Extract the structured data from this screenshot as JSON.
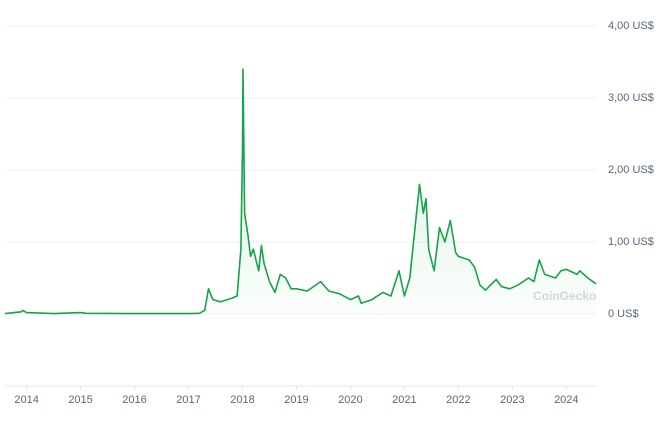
{
  "chart_data": {
    "type": "line",
    "watermark": "CoinGecko",
    "series": [
      {
        "color": "#16a34a",
        "x": [
          2013.6,
          2013.9,
          2013.93,
          2014.0,
          2014.5,
          2015.0,
          2015.1,
          2016.0,
          2017.0,
          2017.2,
          2017.3,
          2017.37,
          2017.45,
          2017.6,
          2017.8,
          2017.9,
          2017.97,
          2018.0,
          2018.01,
          2018.04,
          2018.1,
          2018.15,
          2018.2,
          2018.3,
          2018.35,
          2018.4,
          2018.5,
          2018.6,
          2018.7,
          2018.8,
          2018.9,
          2019.0,
          2019.2,
          2019.45,
          2019.6,
          2019.8,
          2020.0,
          2020.15,
          2020.2,
          2020.4,
          2020.6,
          2020.75,
          2020.9,
          2021.0,
          2021.1,
          2021.28,
          2021.35,
          2021.4,
          2021.45,
          2021.55,
          2021.65,
          2021.75,
          2021.85,
          2021.95,
          2022.0,
          2022.2,
          2022.3,
          2022.4,
          2022.5,
          2022.7,
          2022.8,
          2022.95,
          2023.1,
          2023.3,
          2023.4,
          2023.5,
          2023.6,
          2023.8,
          2023.9,
          2024.0,
          2024.2,
          2024.25,
          2024.4,
          2024.55
        ],
        "values": [
          0.006,
          0.03,
          0.05,
          0.02,
          0.006,
          0.02,
          0.01,
          0.006,
          0.006,
          0.01,
          0.05,
          0.35,
          0.2,
          0.17,
          0.22,
          0.25,
          0.9,
          2.3,
          3.4,
          1.4,
          1.1,
          0.8,
          0.9,
          0.6,
          0.95,
          0.7,
          0.45,
          0.3,
          0.55,
          0.5,
          0.35,
          0.35,
          0.32,
          0.45,
          0.32,
          0.28,
          0.2,
          0.25,
          0.15,
          0.2,
          0.3,
          0.25,
          0.6,
          0.25,
          0.5,
          1.8,
          1.4,
          1.6,
          0.9,
          0.6,
          1.2,
          1.0,
          1.3,
          0.85,
          0.8,
          0.75,
          0.65,
          0.4,
          0.33,
          0.48,
          0.38,
          0.35,
          0.4,
          0.5,
          0.45,
          0.75,
          0.55,
          0.5,
          0.6,
          0.62,
          0.55,
          0.6,
          0.5,
          0.42
        ]
      }
    ],
    "xlim": [
      2013.6,
      2024.55
    ],
    "xticks": [
      2014,
      2015,
      2016,
      2017,
      2018,
      2019,
      2020,
      2021,
      2022,
      2023,
      2024
    ],
    "ylim": [
      -1,
      4.25
    ],
    "yticks": [
      {
        "value": 0,
        "label": "0 US$"
      },
      {
        "value": 1,
        "label": "1,00 US$"
      },
      {
        "value": 2,
        "label": "2,00 US$"
      },
      {
        "value": 3,
        "label": "3,00 US$"
      },
      {
        "value": 4,
        "label": "4,00 US$"
      }
    ],
    "grid": true
  }
}
